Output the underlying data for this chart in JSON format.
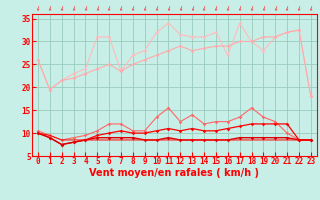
{
  "xlabel": "Vent moyen/en rafales ( km/h )",
  "background_color": "#c8eee8",
  "grid_color": "#99ccbb",
  "x": [
    0,
    1,
    2,
    3,
    4,
    5,
    6,
    7,
    8,
    9,
    10,
    11,
    12,
    13,
    14,
    15,
    16,
    17,
    18,
    19,
    20,
    21,
    22,
    23
  ],
  "ylim": [
    5,
    36
  ],
  "yticks": [
    5,
    10,
    15,
    20,
    25,
    30,
    35
  ],
  "line_gust_spiky": [
    26,
    19.5,
    21.5,
    23,
    24,
    31,
    31,
    23.5,
    27,
    28,
    32,
    34,
    31.5,
    31,
    31,
    32,
    27,
    34,
    30,
    28,
    31,
    32,
    32.5,
    18
  ],
  "line_gust_smooth": [
    26,
    19.5,
    21.5,
    22,
    23,
    24,
    25,
    23.5,
    25,
    26,
    27,
    28,
    29,
    28,
    28.5,
    29,
    29,
    30,
    30,
    31,
    31,
    32,
    32.5,
    18
  ],
  "line_wind_spiky": [
    10.5,
    9.5,
    8.5,
    9,
    9.5,
    10.5,
    12,
    12,
    10.5,
    10.5,
    13.5,
    15.5,
    12.5,
    14,
    12,
    12.5,
    12.5,
    13.5,
    15.5,
    13.5,
    12.5,
    10,
    8.5,
    8.5
  ],
  "line_wind_upper": [
    10,
    9,
    7.5,
    8,
    8.5,
    9.5,
    10,
    10.5,
    10,
    10,
    10.5,
    11,
    10.5,
    11,
    10.5,
    10.5,
    11,
    11.5,
    12,
    12,
    12,
    12,
    8.5,
    8.5
  ],
  "line_wind_lower": [
    10,
    9,
    7.5,
    8,
    8.5,
    9,
    9,
    9,
    9,
    8.5,
    8.5,
    9,
    8.5,
    8.5,
    8.5,
    8.5,
    8.5,
    9,
    9,
    9,
    9,
    9,
    8.5,
    8.5
  ],
  "line_wind_base": [
    10,
    9.5,
    8.5,
    8.5,
    8.5,
    8.5,
    8.5,
    8.5,
    8.5,
    8.5,
    8.5,
    8.5,
    8.5,
    8.5,
    8.5,
    8.5,
    8.5,
    8.5,
    8.5,
    8.5,
    8.5,
    8.5,
    8.5,
    8.5
  ],
  "color_pink_light": "#ffbbbb",
  "color_pink_med": "#ffaaaa",
  "color_red_med": "#ff6666",
  "color_red": "#ff0000",
  "color_red_dark": "#dd0000",
  "marker_size": 1.8,
  "tick_fontsize": 5.5,
  "label_fontsize": 7.0
}
